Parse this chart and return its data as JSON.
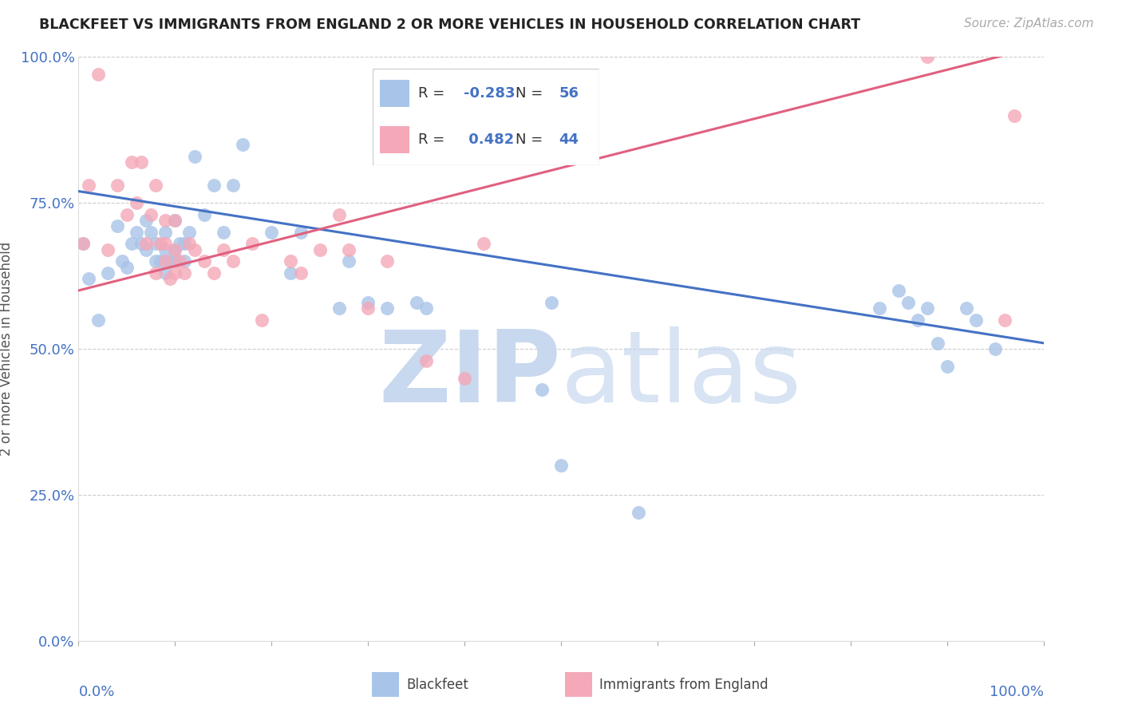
{
  "title": "BLACKFEET VS IMMIGRANTS FROM ENGLAND 2 OR MORE VEHICLES IN HOUSEHOLD CORRELATION CHART",
  "source": "Source: ZipAtlas.com",
  "ylabel": "2 or more Vehicles in Household",
  "ytick_labels": [
    "0.0%",
    "25.0%",
    "50.0%",
    "75.0%",
    "100.0%"
  ],
  "ytick_values": [
    0.0,
    0.25,
    0.5,
    0.75,
    1.0
  ],
  "xlim": [
    0.0,
    1.0
  ],
  "ylim": [
    0.0,
    1.0
  ],
  "blue_R": -0.283,
  "blue_N": 56,
  "pink_R": 0.482,
  "pink_N": 44,
  "blue_color": "#a8c4e8",
  "pink_color": "#f4a8b8",
  "blue_line_color": "#4472c4",
  "pink_line_color": "#e06080",
  "legend_label_blue": "Blackfeet",
  "legend_label_pink": "Immigrants from England",
  "blue_line_x0": 0.0,
  "blue_line_y0": 0.77,
  "blue_line_x1": 1.0,
  "blue_line_y1": 0.51,
  "pink_line_x0": 0.0,
  "pink_line_y0": 0.6,
  "pink_line_x1": 1.0,
  "pink_line_y1": 1.02,
  "blue_scatter_x": [
    0.005,
    0.01,
    0.02,
    0.03,
    0.04,
    0.045,
    0.05,
    0.055,
    0.06,
    0.065,
    0.07,
    0.07,
    0.075,
    0.08,
    0.08,
    0.085,
    0.09,
    0.09,
    0.09,
    0.095,
    0.1,
    0.1,
    0.1,
    0.105,
    0.11,
    0.11,
    0.115,
    0.12,
    0.13,
    0.14,
    0.15,
    0.16,
    0.17,
    0.2,
    0.22,
    0.23,
    0.27,
    0.28,
    0.3,
    0.32,
    0.35,
    0.36,
    0.48,
    0.49,
    0.5,
    0.58,
    0.83,
    0.85,
    0.86,
    0.87,
    0.88,
    0.89,
    0.9,
    0.92,
    0.93,
    0.95
  ],
  "blue_scatter_y": [
    0.68,
    0.62,
    0.55,
    0.63,
    0.71,
    0.65,
    0.64,
    0.68,
    0.7,
    0.68,
    0.72,
    0.67,
    0.7,
    0.65,
    0.68,
    0.65,
    0.63,
    0.67,
    0.7,
    0.65,
    0.65,
    0.67,
    0.72,
    0.68,
    0.65,
    0.68,
    0.7,
    0.83,
    0.73,
    0.78,
    0.7,
    0.78,
    0.85,
    0.7,
    0.63,
    0.7,
    0.57,
    0.65,
    0.58,
    0.57,
    0.58,
    0.57,
    0.43,
    0.58,
    0.3,
    0.22,
    0.57,
    0.6,
    0.58,
    0.55,
    0.57,
    0.51,
    0.47,
    0.57,
    0.55,
    0.5
  ],
  "pink_scatter_x": [
    0.005,
    0.01,
    0.02,
    0.03,
    0.04,
    0.05,
    0.055,
    0.06,
    0.065,
    0.07,
    0.075,
    0.08,
    0.08,
    0.085,
    0.09,
    0.09,
    0.09,
    0.095,
    0.1,
    0.1,
    0.1,
    0.105,
    0.11,
    0.115,
    0.12,
    0.13,
    0.14,
    0.15,
    0.16,
    0.18,
    0.19,
    0.22,
    0.23,
    0.25,
    0.27,
    0.28,
    0.3,
    0.32,
    0.36,
    0.4,
    0.42,
    0.88,
    0.96,
    0.97
  ],
  "pink_scatter_y": [
    0.68,
    0.78,
    0.97,
    0.67,
    0.78,
    0.73,
    0.82,
    0.75,
    0.82,
    0.68,
    0.73,
    0.63,
    0.78,
    0.68,
    0.65,
    0.68,
    0.72,
    0.62,
    0.63,
    0.67,
    0.72,
    0.65,
    0.63,
    0.68,
    0.67,
    0.65,
    0.63,
    0.67,
    0.65,
    0.68,
    0.55,
    0.65,
    0.63,
    0.67,
    0.73,
    0.67,
    0.57,
    0.65,
    0.48,
    0.45,
    0.68,
    1.0,
    0.55,
    0.9
  ]
}
